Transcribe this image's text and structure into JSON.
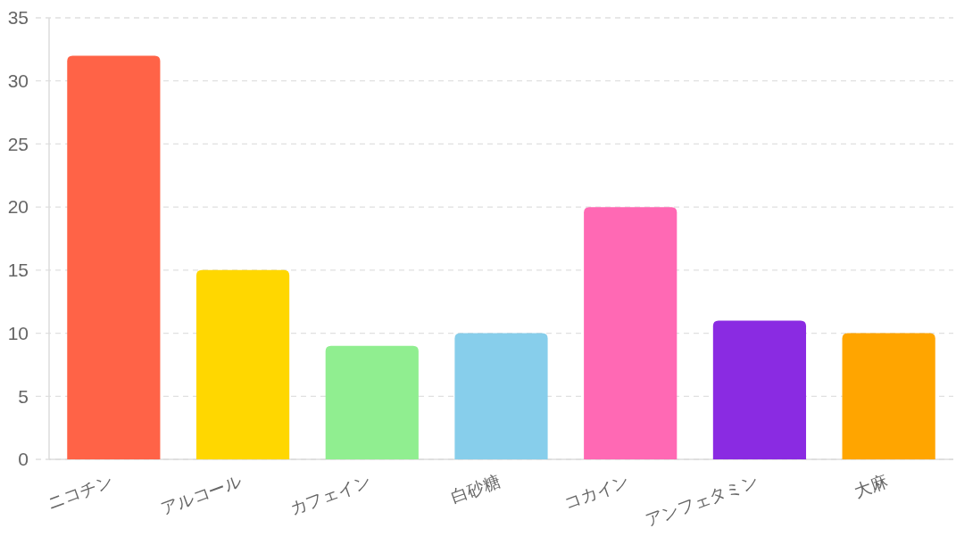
{
  "chart_data": {
    "type": "bar",
    "categories": [
      "ニコチン",
      "アルコール",
      "カフェイン",
      "白砂糖",
      "コカイン",
      "アンフェタミン",
      "大麻"
    ],
    "values": [
      32,
      15,
      9,
      10,
      20,
      11,
      10
    ],
    "colors": [
      "#ff6347",
      "#ffd700",
      "#90ee90",
      "#87ceeb",
      "#ff69b4",
      "#8a2be2",
      "#ffa500"
    ],
    "ylim": [
      0,
      35
    ],
    "yticks": [
      0,
      5,
      10,
      15,
      20,
      25,
      30,
      35
    ],
    "grid": "y"
  }
}
